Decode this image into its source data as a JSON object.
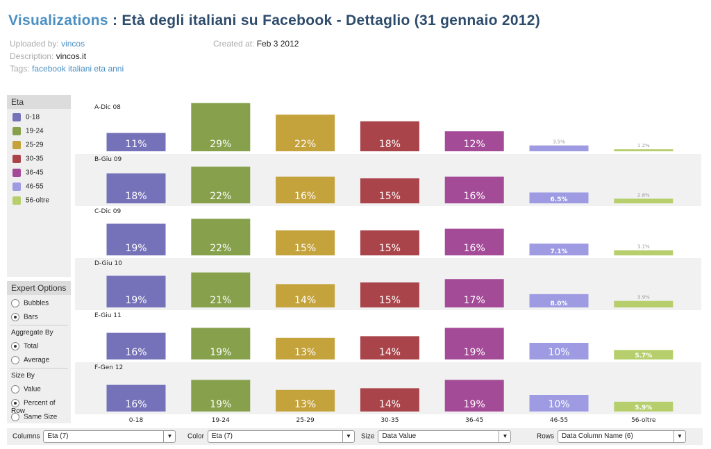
{
  "header": {
    "title_link": "Visualizations",
    "title_rest": " : Età degli italiani su Facebook - Dettaglio (31 gennaio 2012)"
  },
  "meta": {
    "uploaded_label": "Uploaded by:",
    "uploaded_value": "vincos",
    "description_label": "Description:",
    "description_value": "vincos.it",
    "tags_label": "Tags:",
    "tags_value": "facebook italiani eta anni",
    "created_label": "Created at:",
    "created_value": "Feb 3 2012"
  },
  "sidebar": {
    "expert_title": "Expert Options",
    "shape_options": [
      "Bubbles",
      "Bars"
    ],
    "aggregate_title": "Aggregate By",
    "aggregate_options": [
      "Total",
      "Average"
    ],
    "size_title": "Size By",
    "size_options": [
      "Value",
      "Percent of Row",
      "Same Size"
    ]
  },
  "controls": [
    {
      "label": "Columns",
      "value": "Eta (7)"
    },
    {
      "label": "Color",
      "value": "Eta (7)"
    },
    {
      "label": "Size",
      "value": "Data Value"
    },
    {
      "label": "Rows",
      "value": "Data Column Name (6)"
    }
  ],
  "chart_data": {
    "type": "bar-grid",
    "legend_title": "Eta",
    "categories": [
      "0-18",
      "19-24",
      "25-29",
      "30-35",
      "36-45",
      "46-55",
      "56-oltre"
    ],
    "colors": [
      "#7672ba",
      "#86a04c",
      "#c4a23c",
      "#a9454a",
      "#a44b98",
      "#9e9be2",
      "#b6cf6c"
    ],
    "series": [
      {
        "name": "A-Dic 08",
        "values": [
          11,
          29,
          22,
          18,
          12,
          3.5,
          1.2
        ],
        "value_labels": [
          "11%",
          "29%",
          "22%",
          "18%",
          "12%",
          "3.5%",
          "1.2%"
        ]
      },
      {
        "name": "B-Giu 09",
        "values": [
          18,
          22,
          16,
          15,
          16,
          6.5,
          2.8
        ],
        "value_labels": [
          "18%",
          "22%",
          "16%",
          "15%",
          "16%",
          "6.5%",
          "2.8%"
        ]
      },
      {
        "name": "C-Dic 09",
        "values": [
          19,
          22,
          15,
          15,
          16,
          7.1,
          3.1
        ],
        "value_labels": [
          "19%",
          "22%",
          "15%",
          "15%",
          "16%",
          "7.1%",
          "3.1%"
        ]
      },
      {
        "name": "D-Giu 10",
        "values": [
          19,
          21,
          14,
          15,
          17,
          8.0,
          3.9
        ],
        "value_labels": [
          "19%",
          "21%",
          "14%",
          "15%",
          "17%",
          "8.0%",
          "3.9%"
        ]
      },
      {
        "name": "E-Giu 11",
        "values": [
          16,
          19,
          13,
          14,
          19,
          10,
          5.7
        ],
        "value_labels": [
          "16%",
          "19%",
          "13%",
          "14%",
          "19%",
          "10%",
          "5.7%"
        ]
      },
      {
        "name": "F-Gen 12",
        "values": [
          16,
          19,
          13,
          14,
          19,
          10,
          5.9
        ],
        "value_labels": [
          "16%",
          "19%",
          "13%",
          "14%",
          "19%",
          "10%",
          "5.9%"
        ]
      }
    ]
  }
}
